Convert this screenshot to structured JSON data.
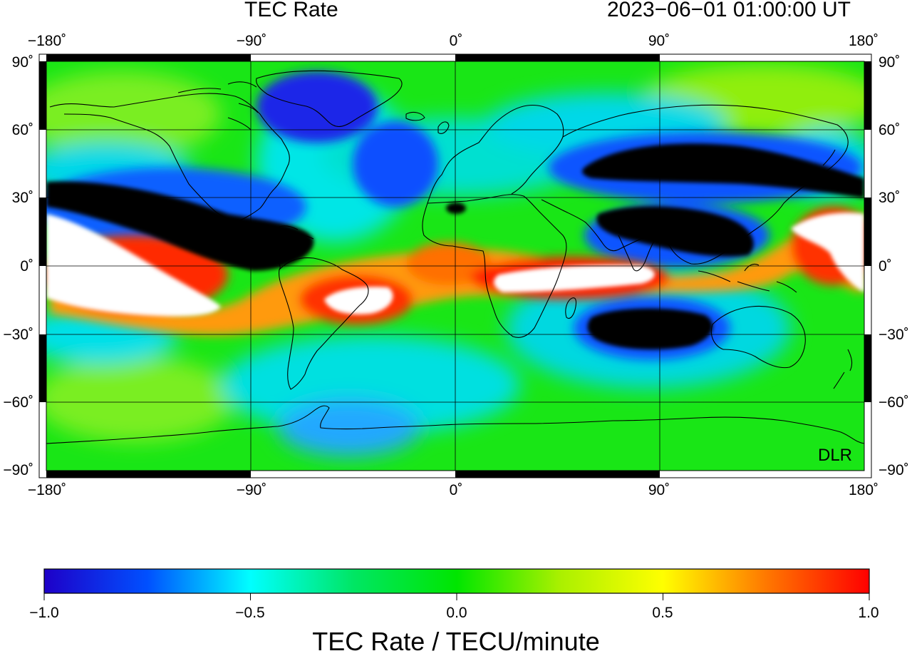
{
  "header": {
    "title": "TEC Rate",
    "timestamp": "2023−06−01  01:00:00 UT"
  },
  "map": {
    "projection": "equirectangular",
    "lon_range": [
      -180,
      180
    ],
    "lat_range": [
      -90,
      90
    ],
    "lon_ticks": [
      "−180˚",
      "−90˚",
      "0˚",
      "90˚",
      "180˚"
    ],
    "lat_ticks": [
      "90˚",
      "60˚",
      "30˚",
      "0˚",
      "−30˚",
      "−60˚",
      "−90˚"
    ],
    "grid": true,
    "credit": "DLR",
    "saturation_colors": {
      "above_max": "#ffffff",
      "below_min": "#000000"
    }
  },
  "colorbar": {
    "min": -1.0,
    "max": 1.0,
    "tick_labels": [
      "−1.0",
      "−0.5",
      "0.0",
      "0.5",
      "1.0"
    ],
    "label": "TEC Rate / TECU/minute",
    "colors": [
      "#1e00c8",
      "#0050ff",
      "#00ffff",
      "#00e664",
      "#00e600",
      "#aaf000",
      "#ffff00",
      "#ff7800",
      "#ff0000"
    ]
  }
}
